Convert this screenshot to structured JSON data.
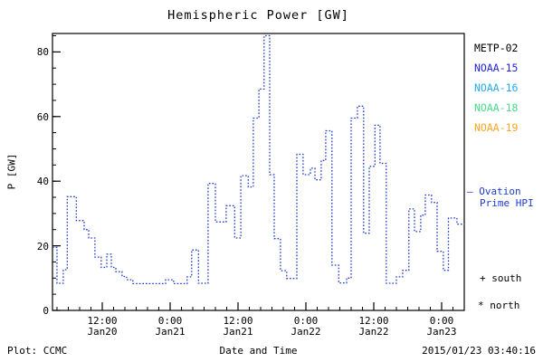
{
  "title": "Hemispheric Power [GW]",
  "footer": {
    "left": "Plot: CCMC",
    "center": "Date and Time",
    "right": "2015/01/23 03:40:16"
  },
  "legend": {
    "items": [
      {
        "label": "METP-02",
        "color": "#000000"
      },
      {
        "label": "NOAA-15",
        "color": "#2424dd"
      },
      {
        "label": "NOAA-16",
        "color": "#27aaee"
      },
      {
        "label": "NOAA-18",
        "color": "#47dd88"
      },
      {
        "label": "NOAA-19",
        "color": "#ffa522"
      }
    ]
  },
  "ovation": {
    "dash": "—",
    "name_line1": "Ovation",
    "name_line2": "Prime HPI",
    "color": "#1d3ccf"
  },
  "markers": {
    "south": {
      "symbol": "+",
      "label": "south"
    },
    "north": {
      "symbol": "*",
      "label": "north"
    }
  },
  "chart_data": {
    "type": "line",
    "style": "steps-dotted",
    "title": "Hemispheric Power [GW]",
    "xlabel": "Date and Time",
    "ylabel": "P [GW]",
    "grid": false,
    "ylim": [
      0,
      85.7
    ],
    "xlim_hours": [
      0,
      72.8
    ],
    "y_major_ticks": [
      0,
      20,
      40,
      60,
      80
    ],
    "y_minor_step": 5,
    "x_major_ticks_hours": [
      8.8,
      20.8,
      32.8,
      44.8,
      56.8,
      68.8
    ],
    "x_minor_start_hours": 0.8,
    "x_minor_step_hours": 2,
    "x_major_tick_labels": [
      {
        "time": "12:00",
        "date": "Jan20"
      },
      {
        "time": "0:00",
        "date": "Jan21"
      },
      {
        "time": "12:00",
        "date": "Jan21"
      },
      {
        "time": "0:00",
        "date": "Jan22"
      },
      {
        "time": "12:00",
        "date": "Jan22"
      },
      {
        "time": "0:00",
        "date": "Jan23"
      }
    ],
    "series": [
      {
        "name": "Ovation Prime HPI",
        "color": "#1d3ccf",
        "line_style": "dotted",
        "t_end_hours": 72.8,
        "steps": [
          [
            0.0,
            19.5
          ],
          [
            0.8,
            8.4
          ],
          [
            1.9,
            12.6
          ],
          [
            2.6,
            35.2
          ],
          [
            4.2,
            27.8
          ],
          [
            5.6,
            25.0
          ],
          [
            6.4,
            22.4
          ],
          [
            7.5,
            16.5
          ],
          [
            8.6,
            13.3
          ],
          [
            9.6,
            17.4
          ],
          [
            10.4,
            13.3
          ],
          [
            11.2,
            12.0
          ],
          [
            12.3,
            10.5
          ],
          [
            13.1,
            9.5
          ],
          [
            14.2,
            8.3
          ],
          [
            20.0,
            9.5
          ],
          [
            21.4,
            8.3
          ],
          [
            23.8,
            10.4
          ],
          [
            24.6,
            18.7
          ],
          [
            25.8,
            8.4
          ],
          [
            27.5,
            39.3
          ],
          [
            28.8,
            27.4
          ],
          [
            30.7,
            32.4
          ],
          [
            32.2,
            22.4
          ],
          [
            33.3,
            41.7
          ],
          [
            34.6,
            38.2
          ],
          [
            35.5,
            59.5
          ],
          [
            36.5,
            68.5
          ],
          [
            37.4,
            85.0
          ],
          [
            38.4,
            42.0
          ],
          [
            39.2,
            22.2
          ],
          [
            40.3,
            12.3
          ],
          [
            41.4,
            9.9
          ],
          [
            43.2,
            48.3
          ],
          [
            44.3,
            42.0
          ],
          [
            45.6,
            44.0
          ],
          [
            46.4,
            40.4
          ],
          [
            47.5,
            46.4
          ],
          [
            48.3,
            55.6
          ],
          [
            49.4,
            14.0
          ],
          [
            50.6,
            8.5
          ],
          [
            52.0,
            10.0
          ],
          [
            52.8,
            59.5
          ],
          [
            53.9,
            63.2
          ],
          [
            55.0,
            23.9
          ],
          [
            56.0,
            44.6
          ],
          [
            57.0,
            57.3
          ],
          [
            57.9,
            45.5
          ],
          [
            59.0,
            8.4
          ],
          [
            60.8,
            10.4
          ],
          [
            61.9,
            12.4
          ],
          [
            63.0,
            31.4
          ],
          [
            64.0,
            24.4
          ],
          [
            65.1,
            29.5
          ],
          [
            65.9,
            35.7
          ],
          [
            67.0,
            33.4
          ],
          [
            68.0,
            18.3
          ],
          [
            69.1,
            12.4
          ],
          [
            70.0,
            28.6
          ],
          [
            71.5,
            26.7
          ]
        ]
      }
    ]
  }
}
